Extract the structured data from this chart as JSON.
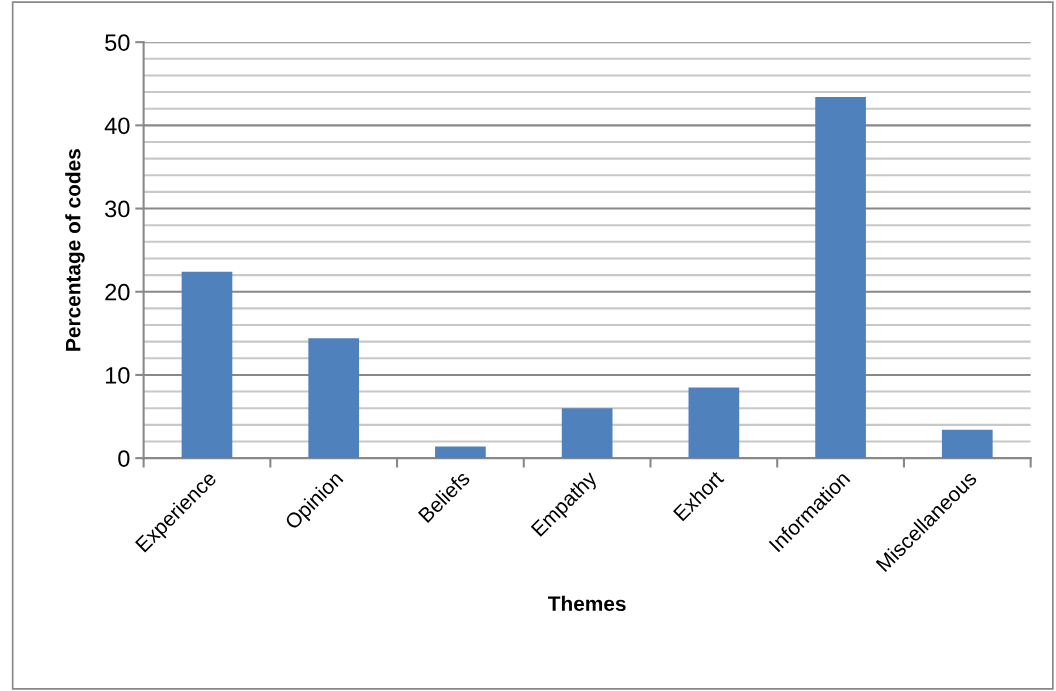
{
  "chart_data": {
    "type": "bar",
    "xlabel": "Themes",
    "ylabel": "Percentage of codes",
    "categories": [
      "Experience",
      "Opinion",
      "Beliefs",
      "Empathy",
      "Exhort",
      "Information",
      "Miscellaneous"
    ],
    "values": [
      22.4,
      14.4,
      1.4,
      6.0,
      8.5,
      43.4,
      3.4
    ],
    "color": "#4f81bd",
    "ylim": [
      0,
      50
    ],
    "yticks": [
      0,
      {
        "value": 2,
        "label": null
      },
      {
        "value": 4,
        "label": null
      },
      {
        "value": 6,
        "label": null
      },
      {
        "value": 8,
        "label": null
      },
      10,
      {
        "value": 12,
        "label": null
      },
      {
        "value": 14,
        "label": null
      },
      {
        "value": 16,
        "label": null
      },
      {
        "value": 18,
        "label": null
      },
      20,
      {
        "value": 22,
        "label": null
      },
      {
        "value": 24,
        "label": null
      },
      {
        "value": 26,
        "label": null
      },
      {
        "value": 28,
        "label": null
      },
      30,
      {
        "value": 32,
        "label": null
      },
      {
        "value": 34,
        "label": null
      },
      {
        "value": 36,
        "label": null
      },
      {
        "value": 38,
        "label": null
      },
      40,
      {
        "value": 42,
        "label": null
      },
      {
        "value": 44,
        "label": null
      },
      {
        "value": 46,
        "label": null
      },
      {
        "value": 48,
        "label": null
      },
      50
    ],
    "grid": "y"
  }
}
